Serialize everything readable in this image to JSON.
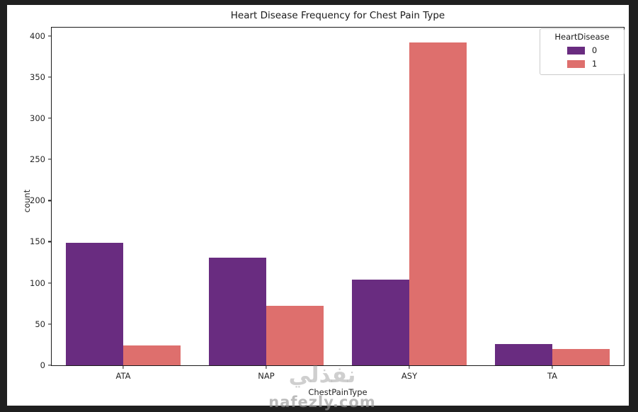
{
  "figure": {
    "title": "Heart Disease Frequency for Chest Pain Type",
    "xlabel": "ChestPainType",
    "ylabel": "count"
  },
  "chart_data": {
    "type": "bar",
    "title": "Heart Disease Frequency for Chest Pain Type",
    "xlabel": "ChestPainType",
    "ylabel": "count",
    "categories": [
      "ATA",
      "NAP",
      "ASY",
      "TA"
    ],
    "series": [
      {
        "name": "0",
        "color": "#692c80",
        "values": [
          149,
          131,
          104,
          26
        ]
      },
      {
        "name": "1",
        "color": "#de6f6d",
        "values": [
          24,
          72,
          392,
          20
        ]
      }
    ],
    "yticks": [
      0,
      50,
      100,
      150,
      200,
      250,
      300,
      350,
      400
    ],
    "ylim": [
      0,
      410
    ],
    "grid": false,
    "legend": {
      "title": "HeartDisease",
      "position": "upper right"
    }
  },
  "colors": {
    "frame": "#1f1f1f",
    "figure_bg": "#ffffff",
    "spine": "#1a1a1a",
    "tick_text": "#262626"
  },
  "watermark": {
    "line1": "نفذلي",
    "line2": "nafezly.com"
  }
}
